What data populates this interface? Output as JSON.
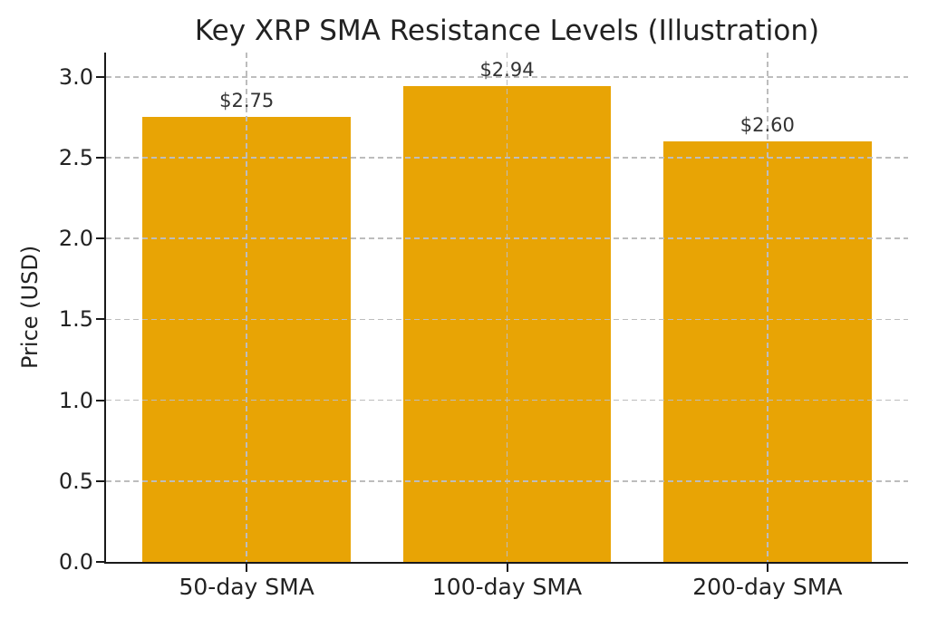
{
  "chart_data": {
    "type": "bar",
    "title": "Key XRP SMA Resistance Levels (Illustration)",
    "xlabel": "",
    "ylabel": "Price (USD)",
    "categories": [
      "50-day SMA",
      "100-day SMA",
      "200-day SMA"
    ],
    "values": [
      2.75,
      2.94,
      2.6
    ],
    "value_labels": [
      "$2.75",
      "$2.94",
      "$2.60"
    ],
    "yticks": [
      0.0,
      0.5,
      1.0,
      1.5,
      2.0,
      2.5,
      3.0
    ],
    "ytick_labels": [
      "0.0",
      "0.5",
      "1.0",
      "1.5",
      "2.0",
      "2.5",
      "3.0"
    ],
    "ylim": [
      0,
      3.15
    ],
    "bar_width_fraction": 0.8,
    "grid": "dashed gridlines on both axes, drawn above bars",
    "legend": "none",
    "colors": {
      "bar": "#E8A405",
      "grid": "#BDBDBD",
      "text": "#222222",
      "spine": "#1A1A1A",
      "background": "#FFFFFF"
    }
  }
}
